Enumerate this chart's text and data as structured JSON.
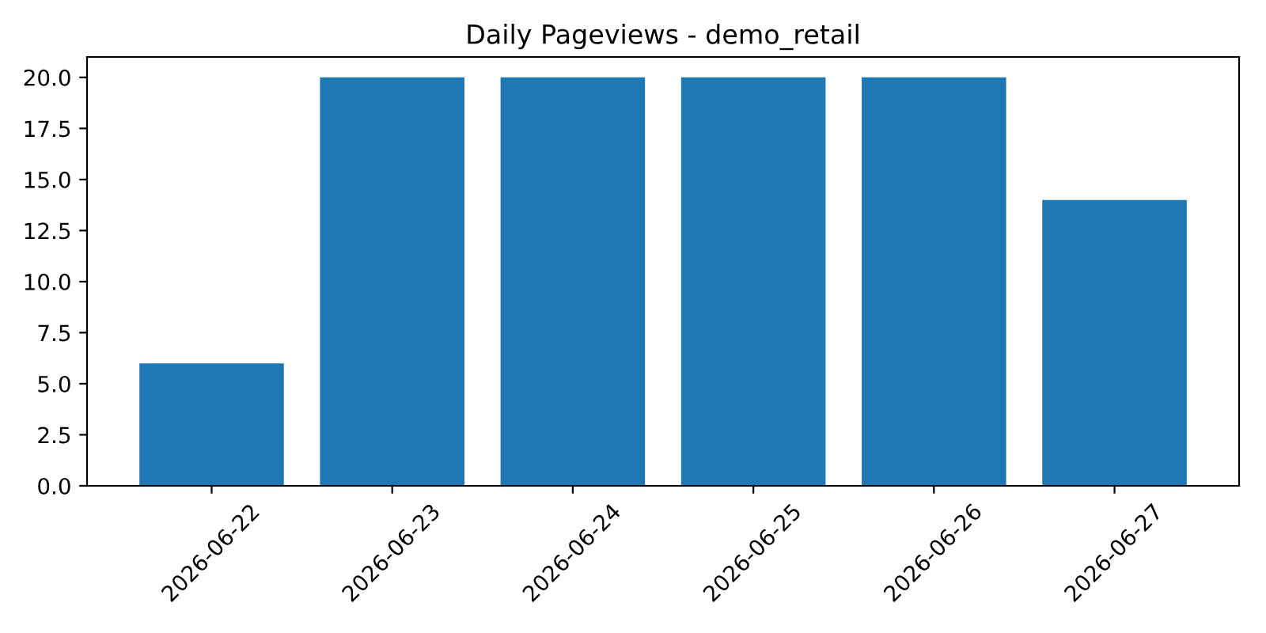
{
  "chart_data": {
    "type": "bar",
    "title": "Daily Pageviews - demo_retail",
    "categories": [
      "2026-06-22",
      "2026-06-23",
      "2026-06-24",
      "2026-06-25",
      "2026-06-26",
      "2026-06-27"
    ],
    "values": [
      6,
      20,
      20,
      20,
      20,
      14
    ],
    "color": "#1f77b4",
    "ylim": [
      0,
      21
    ],
    "yticks": [
      {
        "value": 0,
        "label": "0.0"
      },
      {
        "value": 2.5,
        "label": "2.5"
      },
      {
        "value": 5,
        "label": "5.0"
      },
      {
        "value": 7.5,
        "label": "7.5"
      },
      {
        "value": 10,
        "label": "10.0"
      },
      {
        "value": 12.5,
        "label": "12.5"
      },
      {
        "value": 15,
        "label": "15.0"
      },
      {
        "value": 17.5,
        "label": "17.5"
      },
      {
        "value": 20,
        "label": "20.0"
      }
    ],
    "grid": false,
    "legend": false
  }
}
